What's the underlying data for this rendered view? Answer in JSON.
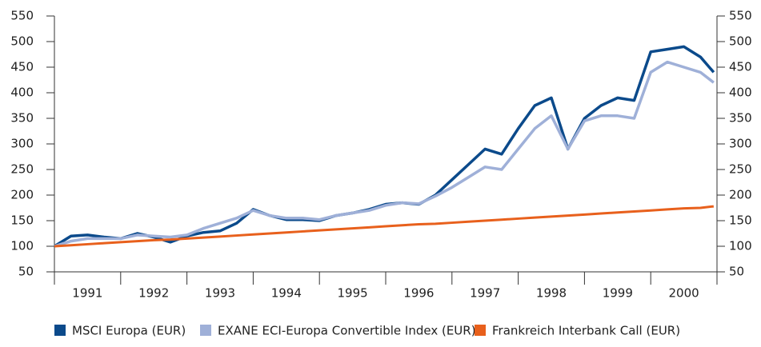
{
  "chart_data": {
    "type": "line",
    "x": [
      1991,
      1991.25,
      1991.5,
      1991.75,
      1992,
      1992.25,
      1992.5,
      1992.75,
      1993,
      1993.25,
      1993.5,
      1993.75,
      1994,
      1994.25,
      1994.5,
      1994.75,
      1995,
      1995.25,
      1995.5,
      1995.75,
      1996,
      1996.25,
      1996.5,
      1996.75,
      1997,
      1997.25,
      1997.5,
      1997.75,
      1998,
      1998.25,
      1998.5,
      1998.75,
      1999,
      1999.25,
      1999.5,
      1999.75,
      2000,
      2000.25,
      2000.5,
      2000.75,
      2000.95
    ],
    "series": [
      {
        "name": "MSCI Europa (EUR)",
        "color": "#0b4a8b",
        "values": [
          100,
          120,
          122,
          118,
          115,
          125,
          118,
          108,
          120,
          127,
          130,
          145,
          172,
          160,
          152,
          152,
          150,
          160,
          165,
          172,
          182,
          185,
          182,
          200,
          230,
          260,
          290,
          280,
          330,
          375,
          390,
          290,
          350,
          375,
          390,
          385,
          480,
          485,
          490,
          470,
          440
        ]
      },
      {
        "name": "EXANE ECI-Europa Convertible Index (EUR)",
        "color": "#9fb0d8",
        "values": [
          100,
          110,
          115,
          115,
          115,
          122,
          120,
          118,
          122,
          135,
          145,
          155,
          170,
          160,
          155,
          155,
          152,
          160,
          165,
          170,
          180,
          185,
          183,
          198,
          215,
          235,
          255,
          250,
          290,
          330,
          355,
          290,
          345,
          355,
          355,
          350,
          440,
          460,
          450,
          440,
          420
        ]
      },
      {
        "name": "Frankreich Interbank Call (EUR)",
        "color": "#e8601c",
        "values": [
          100,
          102,
          104,
          106,
          108,
          110,
          112,
          113,
          115,
          117,
          119,
          121,
          123,
          125,
          127,
          129,
          131,
          133,
          135,
          137,
          139,
          141,
          143,
          144,
          146,
          148,
          150,
          152,
          154,
          156,
          158,
          160,
          162,
          164,
          166,
          168,
          170,
          172,
          174,
          175,
          178
        ]
      }
    ],
    "xlim": [
      1991,
      2001
    ],
    "xticks": [
      1991,
      1992,
      1993,
      1994,
      1995,
      1996,
      1997,
      1998,
      1999,
      2000
    ],
    "ylim": [
      50,
      550
    ],
    "yticks": [
      50,
      100,
      150,
      200,
      250,
      300,
      350,
      400,
      450,
      500,
      550
    ],
    "y2lim": [
      50,
      550
    ],
    "y2ticks": [
      50,
      100,
      150,
      200,
      250,
      300,
      350,
      400,
      450,
      500,
      550
    ]
  }
}
